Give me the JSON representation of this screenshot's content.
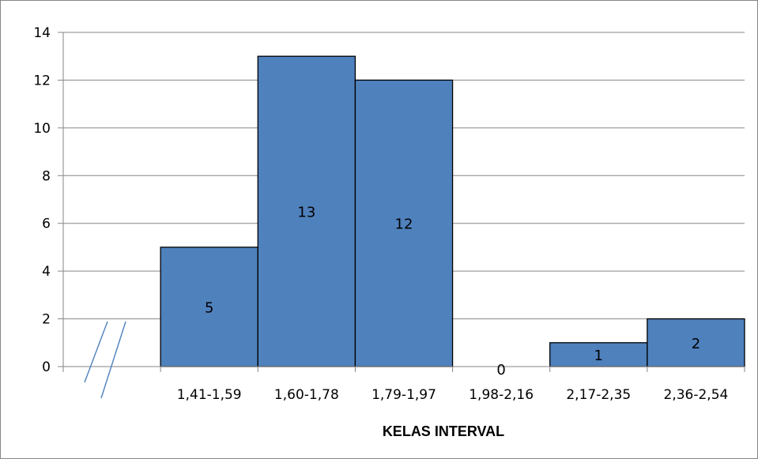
{
  "chart_data": {
    "type": "bar",
    "categories": [
      "",
      "1,41-1,59",
      "1,60-1,78",
      "1,79-1,97",
      "1,98-2,16",
      "2,17-2,35",
      "2,36-2,54"
    ],
    "values": [
      null,
      5,
      13,
      12,
      0,
      1,
      2
    ],
    "data_labels": [
      "",
      "5",
      "13",
      "12",
      "0",
      "1",
      "2"
    ],
    "title": "",
    "xlabel": "KELAS INTERVAL",
    "ylabel": "",
    "ylim": [
      0,
      14
    ],
    "yticks": [
      0,
      2,
      4,
      6,
      8,
      10,
      12,
      14
    ],
    "grid": true,
    "legend": "none",
    "axis_break": "x-axis start",
    "bar_color": "#4F81BD",
    "bar_edge_color": "#000000"
  }
}
